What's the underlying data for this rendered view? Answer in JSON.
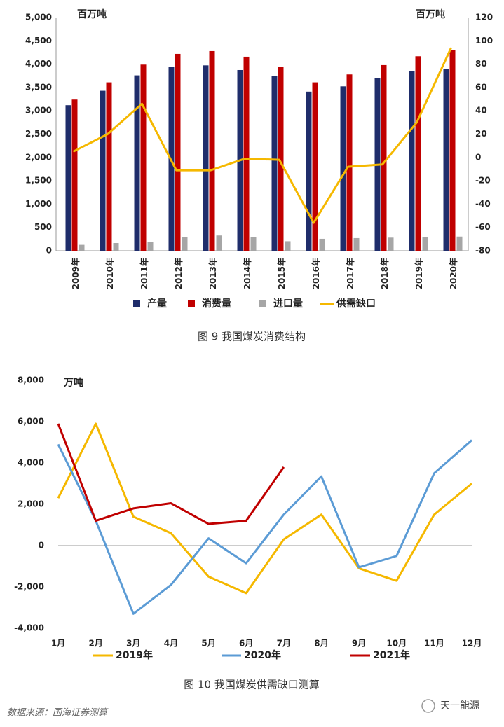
{
  "chart_data": [
    {
      "type": "bar",
      "caption": "图 9  我国煤炭消费结构",
      "ylabel": "百万吨",
      "y2label": "百万吨",
      "categories": [
        "2009年",
        "2010年",
        "2011年",
        "2012年",
        "2013年",
        "2014年",
        "2015年",
        "2016年",
        "2017年",
        "2018年",
        "2019年",
        "2020年"
      ],
      "series": [
        {
          "name": "产量",
          "type": "bar",
          "color": "#1f2d6b",
          "values": [
            3120,
            3430,
            3760,
            3945,
            3974,
            3874,
            3747,
            3411,
            3524,
            3698,
            3846,
            3902
          ]
        },
        {
          "name": "消费量",
          "type": "bar",
          "color": "#c00000",
          "values": [
            3240,
            3610,
            3990,
            4220,
            4280,
            4160,
            3940,
            3610,
            3780,
            3980,
            4170,
            4300
          ]
        },
        {
          "name": "进口量",
          "type": "bar",
          "color": "#a6a6a6",
          "values": [
            126,
            165,
            182,
            289,
            327,
            291,
            204,
            256,
            271,
            281,
            300,
            304
          ]
        },
        {
          "name": "供需缺口",
          "type": "line",
          "axis": "y2",
          "color": "#f5b800",
          "values": [
            5,
            20,
            46,
            -11,
            -11,
            -1,
            -2,
            -56,
            -8,
            -6,
            30,
            94
          ]
        }
      ],
      "ylim": [
        0,
        5000
      ],
      "yticks": [
        0,
        500,
        {
          "value": 1000,
          "label": "1,000"
        },
        {
          "value": 1500,
          "label": "1,500"
        },
        {
          "value": 2000,
          "label": "2,000"
        },
        {
          "value": 2500,
          "label": "2,500"
        },
        {
          "value": 3000,
          "label": "3,000"
        },
        {
          "value": 3500,
          "label": "3,500"
        },
        {
          "value": 4000,
          "label": "4,000"
        },
        {
          "value": 4500,
          "label": "4,500"
        },
        {
          "value": 5000,
          "label": "5,000"
        }
      ],
      "y2lim": [
        -80,
        120
      ],
      "y2ticks": [
        -80,
        -60,
        -40,
        -20,
        0,
        20,
        40,
        60,
        80,
        100,
        120
      ],
      "grid": false,
      "legend": "bottom"
    },
    {
      "type": "line",
      "caption": "图 10  我国煤炭供需缺口测算",
      "ylabel": "万吨",
      "categories": [
        "1月",
        "2月",
        "3月",
        "4月",
        "5月",
        "6月",
        "7月",
        "8月",
        "9月",
        "10月",
        "11月",
        "12月"
      ],
      "series": [
        {
          "name": "2019年",
          "color": "#f5b800",
          "values": [
            2300,
            5900,
            1400,
            600,
            -1500,
            -2300,
            300,
            1500,
            -1100,
            -1700,
            1500,
            3000
          ]
        },
        {
          "name": "2020年",
          "color": "#5b9bd5",
          "values": [
            4900,
            1200,
            -3300,
            -1900,
            350,
            -850,
            1500,
            3350,
            -1050,
            -500,
            3500,
            5100
          ]
        },
        {
          "name": "2021年",
          "color": "#c00000",
          "values": [
            5900,
            1200,
            1800,
            2050,
            1050,
            1200,
            3800,
            null,
            null,
            null,
            null,
            null
          ]
        }
      ],
      "ylim": [
        -4000,
        8000
      ],
      "yticks": [
        {
          "value": -4000,
          "label": "-4,000"
        },
        {
          "value": -2000,
          "label": "-2,000"
        },
        0,
        {
          "value": 2000,
          "label": "2,000"
        },
        {
          "value": 4000,
          "label": "4,000"
        },
        {
          "value": 6000,
          "label": "6,000"
        },
        {
          "value": 8000,
          "label": "8,000"
        }
      ],
      "grid": false,
      "legend": "bottom"
    }
  ],
  "footer": {
    "source": "数据来源：国海证券测算",
    "watermark": "天一能源"
  }
}
